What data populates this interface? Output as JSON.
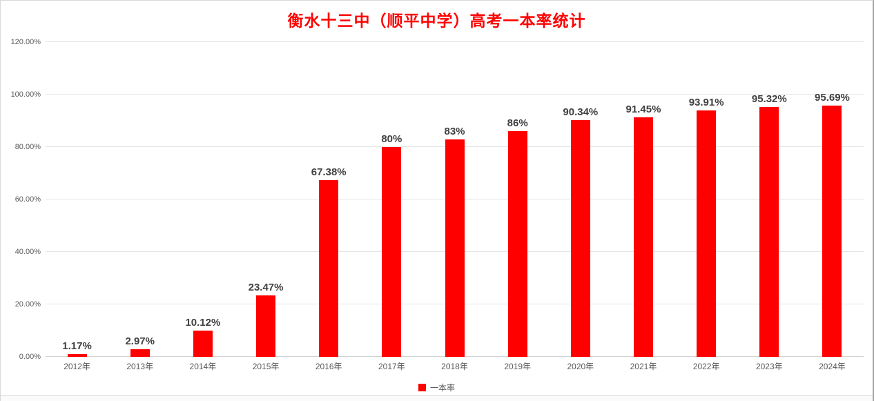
{
  "chart_data": {
    "type": "bar",
    "title": "衡水十三中（顺平中学）高考一本率统计",
    "categories": [
      "2012年",
      "2013年",
      "2014年",
      "2015年",
      "2016年",
      "2017年",
      "2018年",
      "2019年",
      "2020年",
      "2021年",
      "2022年",
      "2023年",
      "2024年"
    ],
    "values": [
      1.17,
      2.97,
      10.12,
      23.47,
      67.38,
      80,
      83,
      86,
      90.34,
      91.45,
      93.91,
      95.32,
      95.69
    ],
    "labels": [
      "1.17%",
      "2.97%",
      "10.12%",
      "23.47%",
      "67.38%",
      "80%",
      "83%",
      "86%",
      "90.34%",
      "91.45%",
      "93.91%",
      "95.32%",
      "95.69%"
    ],
    "series_name": "一本率",
    "xlabel": "",
    "ylabel": "",
    "ylim": [
      0,
      120
    ],
    "ytick_values": [
      0,
      20,
      40,
      60,
      80,
      100,
      120
    ],
    "yticks": [
      "0.00%",
      "20.00%",
      "40.00%",
      "60.00%",
      "80.00%",
      "100.00%",
      "120.00%"
    ],
    "grid": "horizontal",
    "legend_position": "bottom-center",
    "bar_color": "#ff0000",
    "title_color": "#ff0000",
    "value_label_color": "#404040",
    "axis_text_color": "#595959"
  },
  "legend": {
    "series_label": "一本率",
    "swatch_color": "#ff0000"
  }
}
